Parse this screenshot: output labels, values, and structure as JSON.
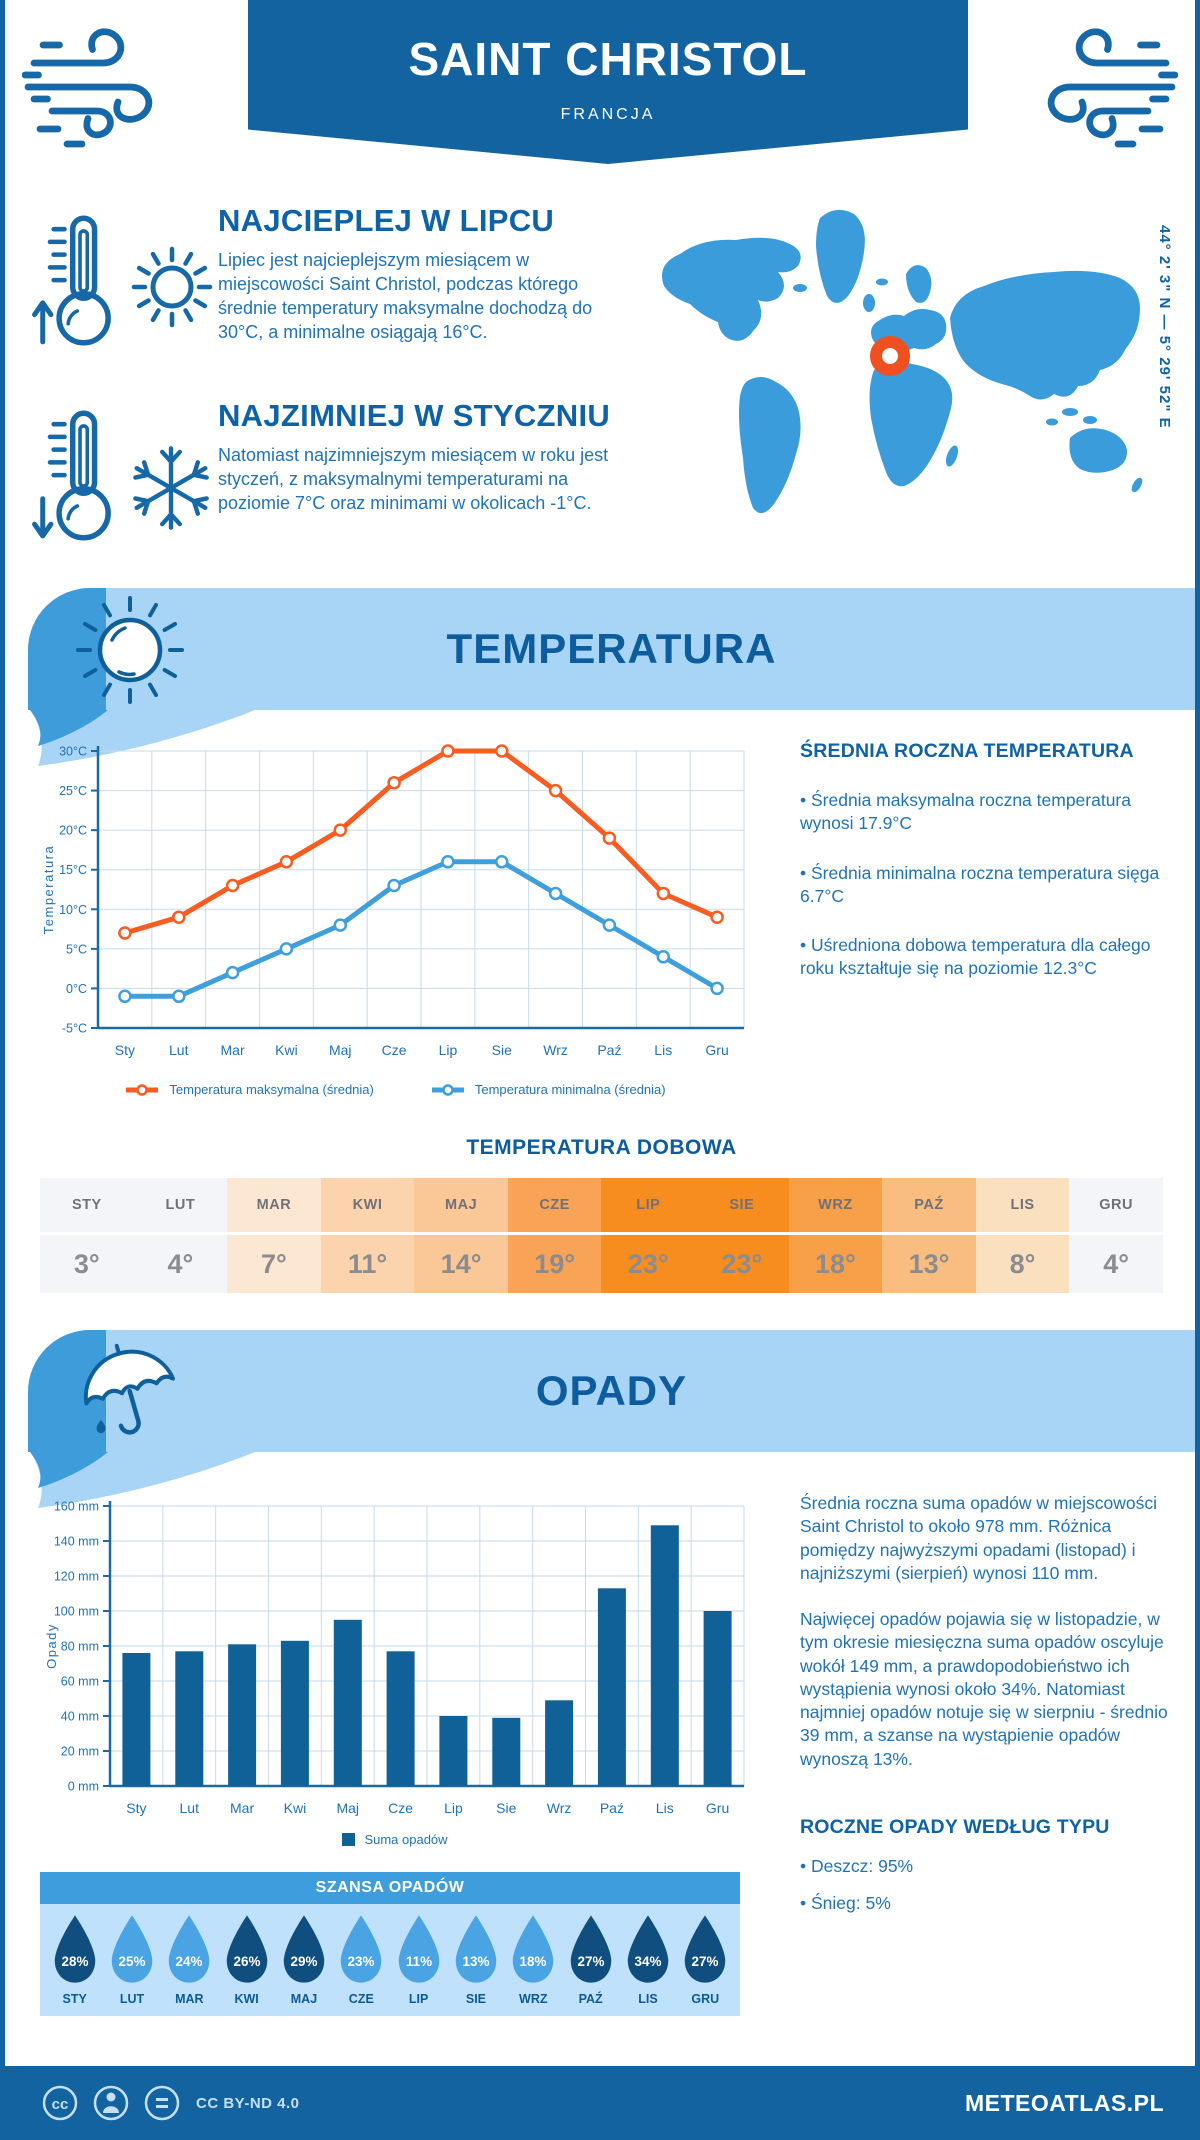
{
  "header": {
    "title": "SAINT CHRISTOL",
    "subtitle": "FRANCJA",
    "coordinates": "44° 2' 3\" N — 5° 29' 52\" E"
  },
  "highlights": [
    {
      "heading": "NAJCIEPLEJ W LIPCU",
      "body": "Lipiec jest najcieplejszym miesiącem w miejscowości Saint Christol, podczas którego średnie temperatury maksymalne dochodzą do 30°C, a minimalne osiągają 16°C."
    },
    {
      "heading": "NAJZIMNIEJ W STYCZNIU",
      "body": "Natomiast najzimniejszym miesiącem w roku jest styczeń, z maksymalnymi temperaturami na poziomie 7°C oraz minimami w okolicach -1°C."
    }
  ],
  "temperature_section": {
    "banner_title": "TEMPERATURA",
    "stats_title": "ŚREDNIA ROCZNA TEMPERATURA",
    "stats": [
      "• Średnia maksymalna roczna temperatura wynosi 17.9°C",
      "• Średnia minimalna roczna temperatura sięga 6.7°C",
      "• Uśredniona dobowa temperatura dla całego roku kształtuje się na poziomie 12.3°C"
    ]
  },
  "precipitation_section": {
    "banner_title": "OPADY",
    "paragraphs": [
      "Średnia roczna suma opadów w miejscowości Saint Christol to około 978 mm. Różnica pomiędzy najwyższymi opadami (listopad) i najniższymi (sierpień) wynosi 110 mm.",
      "Najwięcej opadów pojawia się w listopadzie, w tym okresie miesięczna suma opadów oscyluje wokół 149 mm, a prawdopodobieństwo ich wystąpienia wynosi około 34%. Natomiast najmniej opadów notuje się w sierpniu - średnio 39 mm, a szanse na wystąpienie opadów wynoszą 13%."
    ],
    "type_title": "ROCZNE OPADY WEDŁUG TYPU",
    "type_items": [
      "• Deszcz: 95%",
      "• Śnieg: 5%"
    ]
  },
  "footer": {
    "license": "CC BY-ND 4.0",
    "brand": "METEOATLAS.PL",
    "cc": "cc"
  },
  "colors": {
    "brand_dark": "#12639f",
    "banner_light": "#a8d5f6",
    "banner_accent": "#3e9cda",
    "heading_blue": "#0e62a8",
    "body_blue": "#2273b5",
    "grid": "#c6daeb",
    "axis": "#1a6aa5",
    "marker_orange": "#f04f1f",
    "map_land": "#3b9cdb"
  },
  "chart_data": [
    {
      "id": "temperature",
      "type": "line",
      "x_categories": [
        "Sty",
        "Lut",
        "Mar",
        "Kwi",
        "Maj",
        "Cze",
        "Lip",
        "Sie",
        "Wrz",
        "Paź",
        "Lis",
        "Gru"
      ],
      "ylabel": "Temperatura",
      "ylim": [
        -5,
        30
      ],
      "ytick_step": 5,
      "ytick_suffix": "°C",
      "grid": true,
      "legend_position": "bottom",
      "series": [
        {
          "name": "Temperatura maksymalna (średnia)",
          "color": "#f85c21",
          "values": [
            7,
            9,
            13,
            16,
            20,
            26,
            30,
            30,
            25,
            19,
            12,
            9
          ]
        },
        {
          "name": "Temperatura minimalna (średnia)",
          "color": "#3f9fdc",
          "values": [
            -1,
            -1,
            2,
            5,
            8,
            13,
            16,
            16,
            12,
            8,
            4,
            0
          ]
        }
      ]
    },
    {
      "id": "precipitation",
      "type": "bar",
      "x_categories": [
        "Sty",
        "Lut",
        "Mar",
        "Kwi",
        "Maj",
        "Cze",
        "Lip",
        "Sie",
        "Wrz",
        "Paź",
        "Lis",
        "Gru"
      ],
      "ylabel": "Opady",
      "ylim": [
        0,
        160
      ],
      "ytick_step": 20,
      "ytick_suffix": " mm",
      "grid": true,
      "legend_position": "bottom",
      "series": [
        {
          "name": "Suma opadów",
          "color": "#0f6198",
          "values": [
            76,
            77,
            81,
            83,
            95,
            77,
            40,
            39,
            49,
            113,
            149,
            100
          ]
        }
      ]
    },
    {
      "id": "daily_temperature",
      "type": "table",
      "title": "TEMPERATURA DOBOWA",
      "columns": [
        "STY",
        "LUT",
        "MAR",
        "KWI",
        "MAJ",
        "CZE",
        "LIP",
        "SIE",
        "WRZ",
        "PAŹ",
        "LIS",
        "GRU"
      ],
      "values": [
        "3°",
        "4°",
        "7°",
        "11°",
        "14°",
        "19°",
        "23°",
        "23°",
        "18°",
        "13°",
        "8°",
        "4°"
      ],
      "cell_colors": [
        "#f3f5f9",
        "#f3f5f9",
        "#fce7d2",
        "#fbd4ae",
        "#fac897",
        "#f8a355",
        "#f68d1e",
        "#f68d1e",
        "#f8a048",
        "#f9bd80",
        "#fbe0c0",
        "#f3f5f9"
      ]
    },
    {
      "id": "rain_chance",
      "type": "table",
      "title": "SZANSA OPADÓW",
      "columns": [
        "STY",
        "LUT",
        "MAR",
        "KWI",
        "MAJ",
        "CZE",
        "LIP",
        "SIE",
        "WRZ",
        "PAŹ",
        "LIS",
        "GRU"
      ],
      "values": [
        "28%",
        "25%",
        "24%",
        "26%",
        "29%",
        "23%",
        "11%",
        "13%",
        "18%",
        "27%",
        "34%",
        "27%"
      ],
      "drop_variant": [
        "dark",
        "light",
        "light",
        "dark",
        "dark",
        "light",
        "light",
        "light",
        "light",
        "dark",
        "dark",
        "dark"
      ],
      "drop_colors": {
        "dark": "#114e80",
        "light": "#4aa3e3"
      }
    }
  ]
}
